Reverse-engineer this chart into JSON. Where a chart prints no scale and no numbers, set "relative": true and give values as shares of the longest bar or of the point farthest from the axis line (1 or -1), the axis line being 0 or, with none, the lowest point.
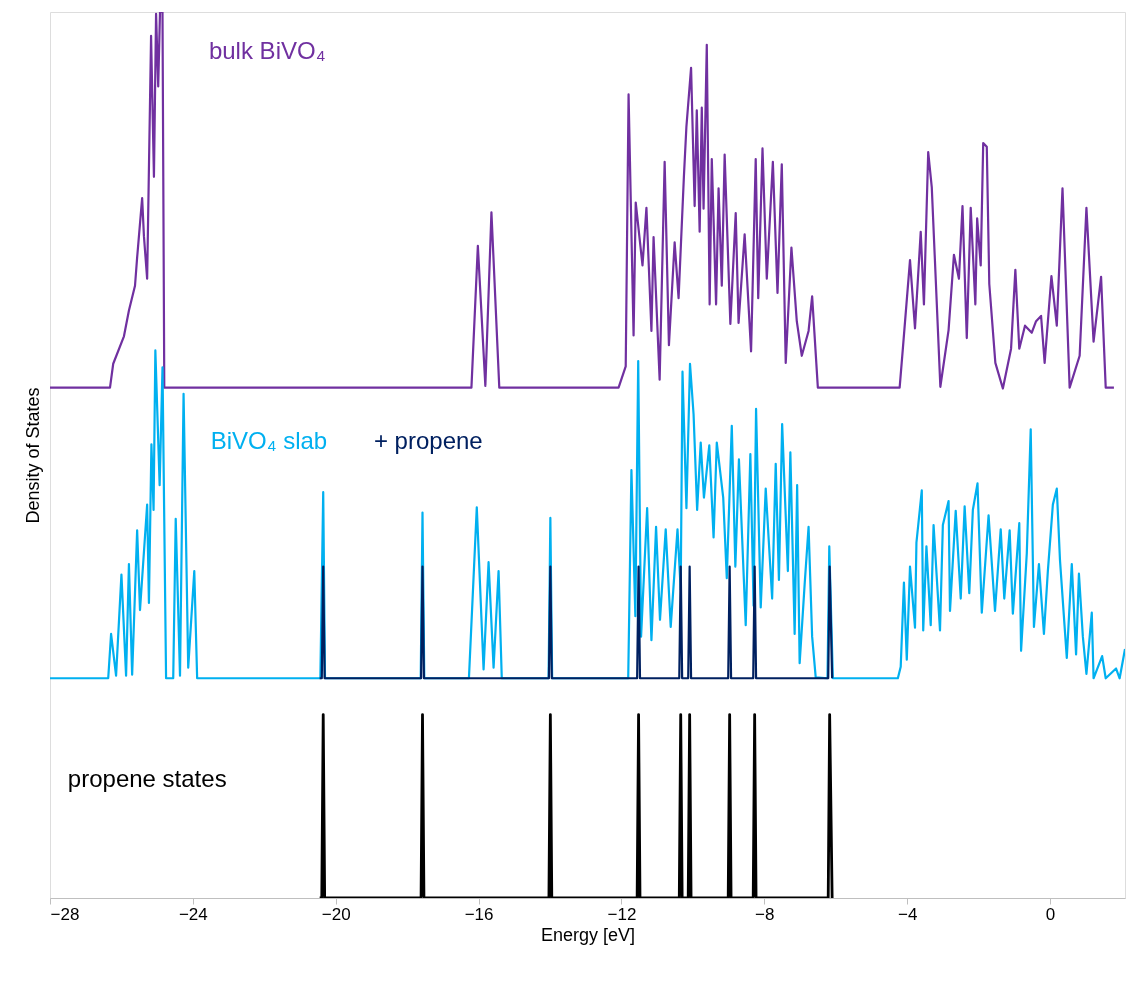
{
  "chart_data": {
    "type": "line",
    "relative": true,
    "xlabel": "Energy [eV]",
    "ylabel": "Density of States",
    "xlim": [
      -28,
      2.1
    ],
    "xticks": [
      -28,
      -24,
      -20,
      -16,
      -12,
      -8,
      -4,
      0
    ],
    "tick_labels": "x",
    "grid": false,
    "legend": false,
    "marker": "none",
    "line_style": "solid",
    "series": [
      {
        "name": "bulk BiVO₄",
        "color": "#7030a0",
        "x": [
          -28,
          -26.32,
          -26.23,
          -25.93,
          -25.79,
          -25.62,
          -25.56,
          -25.42,
          -25.37,
          -25.28,
          -25.17,
          -25.09,
          -25.03,
          -24.97,
          -24.92,
          -24.85,
          -24.8,
          -16.2,
          -16.02,
          -15.81,
          -15.64,
          -15.42,
          -12.08,
          -11.88,
          -11.8,
          -11.66,
          -11.6,
          -11.41,
          -11.3,
          -11.16,
          -11.1,
          -10.93,
          -10.79,
          -10.67,
          -10.51,
          -10.4,
          -10.25,
          -10.18,
          -10.05,
          -9.95,
          -9.89,
          -9.81,
          -9.75,
          -9.7,
          -9.61,
          -9.53,
          -9.47,
          -9.35,
          -9.28,
          -9.19,
          -9.11,
          -8.95,
          -8.8,
          -8.72,
          -8.55,
          -8.37,
          -8.24,
          -8.17,
          -8.05,
          -7.93,
          -7.76,
          -7.63,
          -7.51,
          -7.4,
          -7.24,
          -7.09,
          -6.95,
          -6.76,
          -6.66,
          -6.5,
          -4.21,
          -4.12,
          -3.92,
          -3.78,
          -3.62,
          -3.53,
          -3.41,
          -3.31,
          -3.07,
          -2.84,
          -2.69,
          -2.55,
          -2.45,
          -2.33,
          -2.22,
          -2.09,
          -2.04,
          -1.94,
          -1.87,
          -1.77,
          -1.7,
          -1.53,
          -1.32,
          -1.09,
          -0.97,
          -0.86,
          -0.7,
          -0.51,
          -0.39,
          -0.25,
          -0.15,
          0.04,
          0.19,
          0.35,
          0.55,
          0.83,
          1.02,
          1.22,
          1.43,
          1.56,
          1.79
        ],
        "values": [
          0.576,
          0.576,
          0.603,
          0.634,
          0.663,
          0.691,
          0.723,
          0.79,
          0.747,
          0.699,
          0.973,
          0.814,
          0.998,
          0.916,
          1.0,
          1.0,
          0.576,
          0.576,
          0.736,
          0.578,
          0.774,
          0.576,
          0.576,
          0.6,
          0.907,
          0.635,
          0.785,
          0.714,
          0.779,
          0.64,
          0.746,
          0.585,
          0.831,
          0.624,
          0.74,
          0.677,
          0.815,
          0.871,
          0.937,
          0.781,
          0.889,
          0.752,
          0.892,
          0.778,
          0.963,
          0.67,
          0.834,
          0.67,
          0.801,
          0.691,
          0.839,
          0.648,
          0.773,
          0.649,
          0.749,
          0.617,
          0.834,
          0.677,
          0.846,
          0.699,
          0.831,
          0.683,
          0.828,
          0.604,
          0.734,
          0.651,
          0.612,
          0.64,
          0.679,
          0.576,
          0.576,
          0.62,
          0.72,
          0.643,
          0.752,
          0.67,
          0.842,
          0.802,
          0.577,
          0.641,
          0.726,
          0.699,
          0.781,
          0.632,
          0.779,
          0.67,
          0.767,
          0.714,
          0.852,
          0.848,
          0.693,
          0.604,
          0.575,
          0.62,
          0.709,
          0.62,
          0.646,
          0.638,
          0.651,
          0.657,
          0.604,
          0.702,
          0.646,
          0.801,
          0.576,
          0.612,
          0.779,
          0.628,
          0.701,
          0.576,
          0.576
        ]
      },
      {
        "name": "BiVO₄ slab",
        "color": "#00b0f0",
        "x": [
          -28,
          -26.37,
          -26.29,
          -26.15,
          -26.0,
          -25.87,
          -25.79,
          -25.7,
          -25.56,
          -25.48,
          -25.28,
          -25.23,
          -25.16,
          -25.1,
          -25.05,
          -24.93,
          -24.85,
          -24.75,
          -24.55,
          -24.48,
          -24.36,
          -24.26,
          -24.13,
          -23.96,
          -23.88,
          -20.43,
          -20.35,
          -20.3,
          -17.62,
          -17.57,
          -17.52,
          -16.27,
          -16.05,
          -15.86,
          -15.72,
          -15.58,
          -15.44,
          -15.35,
          -14.04,
          -13.99,
          -13.94,
          -11.81,
          -11.72,
          -11.61,
          -11.53,
          -11.45,
          -11.28,
          -11.16,
          -11.03,
          -10.92,
          -10.76,
          -10.62,
          -10.43,
          -10.34,
          -10.29,
          -10.18,
          -10.08,
          -9.98,
          -9.88,
          -9.78,
          -9.69,
          -9.54,
          -9.42,
          -9.33,
          -9.15,
          -9.05,
          -8.91,
          -8.81,
          -8.71,
          -8.52,
          -8.39,
          -8.3,
          -8.23,
          -8.1,
          -7.96,
          -7.78,
          -7.68,
          -7.59,
          -7.5,
          -7.34,
          -7.27,
          -7.15,
          -7.08,
          -7.01,
          -6.87,
          -6.76,
          -6.66,
          -6.56,
          -6.23,
          -6.18,
          -6.08,
          -4.26,
          -4.18,
          -4.09,
          -4.01,
          -3.92,
          -3.78,
          -3.74,
          -3.59,
          -3.55,
          -3.46,
          -3.34,
          -3.26,
          -3.08,
          -3.0,
          -2.84,
          -2.8,
          -2.64,
          -2.5,
          -2.39,
          -2.26,
          -2.16,
          -2.03,
          -1.91,
          -1.72,
          -1.54,
          -1.38,
          -1.28,
          -1.13,
          -1.04,
          -0.86,
          -0.81,
          -0.65,
          -0.54,
          -0.45,
          -0.31,
          -0.17,
          -0.06,
          0.08,
          0.19,
          0.28,
          0.47,
          0.61,
          0.73,
          0.81,
          0.92,
          1.02,
          1.17,
          1.22,
          1.46,
          1.56,
          1.85,
          1.95,
          2.1
        ],
        "values": [
          0.248,
          0.248,
          0.298,
          0.251,
          0.365,
          0.251,
          0.377,
          0.252,
          0.415,
          0.325,
          0.444,
          0.333,
          0.512,
          0.438,
          0.618,
          0.466,
          0.599,
          0.248,
          0.248,
          0.428,
          0.251,
          0.569,
          0.26,
          0.369,
          0.248,
          0.248,
          0.458,
          0.248,
          0.248,
          0.435,
          0.248,
          0.248,
          0.441,
          0.258,
          0.379,
          0.26,
          0.369,
          0.248,
          0.248,
          0.429,
          0.248,
          0.248,
          0.483,
          0.318,
          0.606,
          0.295,
          0.44,
          0.291,
          0.419,
          0.314,
          0.416,
          0.306,
          0.416,
          0.348,
          0.594,
          0.44,
          0.603,
          0.546,
          0.438,
          0.514,
          0.452,
          0.511,
          0.407,
          0.514,
          0.452,
          0.361,
          0.533,
          0.374,
          0.495,
          0.308,
          0.501,
          0.33,
          0.552,
          0.328,
          0.462,
          0.338,
          0.49,
          0.359,
          0.535,
          0.369,
          0.503,
          0.298,
          0.466,
          0.265,
          0.354,
          0.419,
          0.295,
          0.249,
          0.248,
          0.397,
          0.248,
          0.248,
          0.261,
          0.356,
          0.269,
          0.374,
          0.305,
          0.401,
          0.46,
          0.302,
          0.397,
          0.308,
          0.421,
          0.302,
          0.421,
          0.448,
          0.324,
          0.437,
          0.338,
          0.442,
          0.344,
          0.438,
          0.468,
          0.322,
          0.432,
          0.324,
          0.416,
          0.338,
          0.415,
          0.321,
          0.423,
          0.279,
          0.389,
          0.529,
          0.306,
          0.377,
          0.298,
          0.369,
          0.444,
          0.462,
          0.381,
          0.271,
          0.377,
          0.275,
          0.366,
          0.295,
          0.253,
          0.322,
          0.248,
          0.273,
          0.248,
          0.259,
          0.248,
          0.281
        ]
      },
      {
        "name": "+ propene",
        "color": "#002060",
        "x": [
          -20.45,
          -20.39,
          -20.35,
          -20.31,
          -17.61,
          -17.57,
          -17.53,
          -14.03,
          -13.99,
          -13.95,
          -11.56,
          -11.52,
          -11.48,
          -10.38,
          -10.34,
          -10.3,
          -10.13,
          -10.09,
          -10.05,
          -9.01,
          -8.97,
          -8.93,
          -8.31,
          -8.27,
          -8.23,
          -6.21,
          -6.17,
          -6.1
        ],
        "values": [
          0.248,
          0.248,
          0.374,
          0.248,
          0.248,
          0.374,
          0.248,
          0.248,
          0.374,
          0.248,
          0.248,
          0.374,
          0.248,
          0.248,
          0.374,
          0.248,
          0.248,
          0.374,
          0.248,
          0.248,
          0.374,
          0.248,
          0.248,
          0.374,
          0.248,
          0.248,
          0.374,
          0.248
        ]
      },
      {
        "name": "propene states",
        "color": "#000000",
        "x": [
          -20.45,
          -20.39,
          -20.35,
          -20.31,
          -17.61,
          -17.57,
          -17.53,
          -14.03,
          -13.99,
          -13.95,
          -11.56,
          -11.52,
          -11.48,
          -10.38,
          -10.34,
          -10.3,
          -10.13,
          -10.09,
          -10.05,
          -9.01,
          -8.97,
          -8.93,
          -8.31,
          -8.27,
          -8.23,
          -6.21,
          -6.17,
          -6.1
        ],
        "values": [
          0,
          0,
          0.207,
          0,
          0,
          0.207,
          0,
          0,
          0.207,
          0,
          0,
          0.207,
          0,
          0,
          0.207,
          0,
          0,
          0.207,
          0,
          0,
          0.207,
          0,
          0,
          0.207,
          0,
          0,
          0.207,
          0
        ]
      }
    ]
  }
}
